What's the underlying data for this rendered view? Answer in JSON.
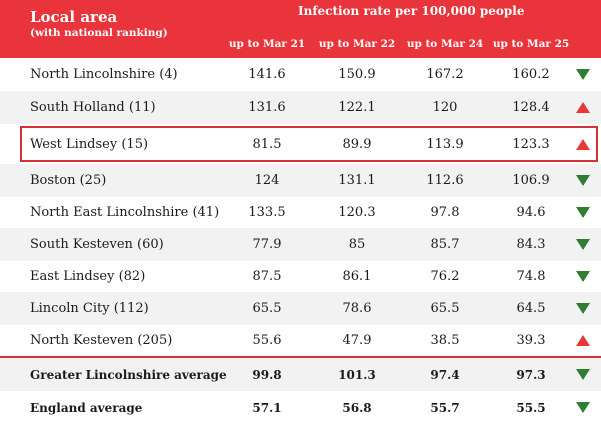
{
  "header": {
    "local_area": "Local area",
    "ranking_note": "(with national ranking)",
    "rate_title": "Infection rate per 100,000 people",
    "columns": [
      "up to Mar 21",
      "up to Mar 22",
      "up to Mar 24",
      "up to Mar 25"
    ]
  },
  "rows": [
    {
      "name": "North Lincolnshire (4)",
      "values": [
        "141.6",
        "150.9",
        "167.2",
        "160.2"
      ],
      "trend": "down"
    },
    {
      "name": "South Holland (11)",
      "values": [
        "131.6",
        "122.1",
        "120",
        "128.4"
      ],
      "trend": "up"
    },
    {
      "name": "West Lindsey (15)",
      "values": [
        "81.5",
        "89.9",
        "113.9",
        "123.3"
      ],
      "trend": "up"
    },
    {
      "name": "Boston (25)",
      "values": [
        "124",
        "131.1",
        "112.6",
        "106.9"
      ],
      "trend": "down"
    },
    {
      "name": "North East Lincolnshire (41)",
      "values": [
        "133.5",
        "120.3",
        "97.8",
        "94.6"
      ],
      "trend": "down"
    },
    {
      "name": "South Kesteven (60)",
      "values": [
        "77.9",
        "85",
        "85.7",
        "84.3"
      ],
      "trend": "down"
    },
    {
      "name": "East Lindsey (82)",
      "values": [
        "87.5",
        "86.1",
        "76.2",
        "74.8"
      ],
      "trend": "down"
    },
    {
      "name": "Lincoln City (112)",
      "values": [
        "65.5",
        "78.6",
        "65.5",
        "64.5"
      ],
      "trend": "down"
    },
    {
      "name": "North Kesteven (205)",
      "values": [
        "55.6",
        "47.9",
        "38.5",
        "39.3"
      ],
      "trend": "up"
    },
    {
      "name": "Greater Lincolnshire average",
      "values": [
        "99.8",
        "101.3",
        "97.4",
        "97.3"
      ],
      "trend": "down"
    },
    {
      "name": "England average",
      "values": [
        "57.1",
        "56.8",
        "55.7",
        "55.5"
      ],
      "trend": "down"
    }
  ],
  "colors": {
    "header": "#e8343a",
    "up": "#e53935",
    "down": "#2e7d32"
  },
  "highlighted_row": "West Lindsey (15)"
}
